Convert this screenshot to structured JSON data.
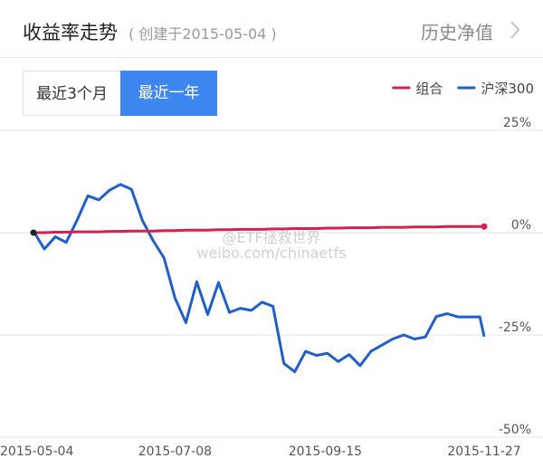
{
  "header": {
    "title": "收益率走势",
    "subtitle": "( 创建于2015-05-04 )",
    "link": "历史净值"
  },
  "tabs": [
    "最近3个月",
    "最近一年"
  ],
  "watermark": [
    "@ETF拯救世界",
    "weibo.com/chinaetfs"
  ],
  "chart_data": {
    "type": "line",
    "x": [
      "2015-05-04",
      "2015-05-09",
      "2015-05-14",
      "2015-05-19",
      "2015-05-24",
      "2015-05-29",
      "2015-06-03",
      "2015-06-08",
      "2015-06-13",
      "2015-06-18",
      "2015-06-23",
      "2015-06-28",
      "2015-07-03",
      "2015-07-08",
      "2015-07-13",
      "2015-07-18",
      "2015-07-23",
      "2015-07-28",
      "2015-08-02",
      "2015-08-07",
      "2015-08-12",
      "2015-08-17",
      "2015-08-22",
      "2015-08-27",
      "2015-09-01",
      "2015-09-06",
      "2015-09-11",
      "2015-09-16",
      "2015-09-21",
      "2015-09-26",
      "2015-10-01",
      "2015-10-06",
      "2015-10-11",
      "2015-10-16",
      "2015-10-21",
      "2015-10-26",
      "2015-10-31",
      "2015-11-05",
      "2015-11-10",
      "2015-11-15",
      "2015-11-20",
      "2015-11-25",
      "2015-11-27"
    ],
    "series": [
      {
        "name": "组合",
        "color": "#d6204f",
        "values": [
          0,
          0,
          0.1,
          0.1,
          0.2,
          0.2,
          0.2,
          0.3,
          0.3,
          0.4,
          0.4,
          0.4,
          0.5,
          0.5,
          0.6,
          0.6,
          0.6,
          0.7,
          0.7,
          0.8,
          0.8,
          0.8,
          0.9,
          0.9,
          1,
          1,
          1,
          1.1,
          1.1,
          1.2,
          1.2,
          1.2,
          1.3,
          1.3,
          1.3,
          1.4,
          1.4,
          1.4,
          1.5,
          1.5,
          1.5,
          1.5,
          1.5
        ]
      },
      {
        "name": "沪深300",
        "color": "#1f5fcc",
        "values": [
          0.4,
          -4,
          -1,
          -2.4,
          3,
          9,
          8,
          10.4,
          11.8,
          10.6,
          3,
          -2,
          -6.2,
          -16,
          -22,
          -12,
          -20,
          -12.2,
          -19.5,
          -18.5,
          -19,
          -17,
          -18,
          -32,
          -34,
          -29,
          -30,
          -29.5,
          -31.5,
          -29.8,
          -32.5,
          -29,
          -27.5,
          -26,
          -25,
          -26,
          -25.5,
          -20.5,
          -19.8,
          -20.6,
          -20.6,
          -20.6,
          -25.4
        ]
      }
    ],
    "xlim": [
      "2015-05-04",
      "2015-11-27"
    ],
    "xticks": [
      "2015-05-04",
      "2015-07-08",
      "2015-09-15",
      "2015-11-27"
    ],
    "ylim": [
      -50,
      25
    ],
    "yticks": [
      {
        "value": 25,
        "label": "25%"
      },
      {
        "value": 0,
        "label": "0%"
      },
      {
        "value": -25,
        "label": "-25%"
      },
      {
        "value": -50,
        "label": "-50%"
      }
    ],
    "grid": true,
    "legend": "top-right"
  }
}
